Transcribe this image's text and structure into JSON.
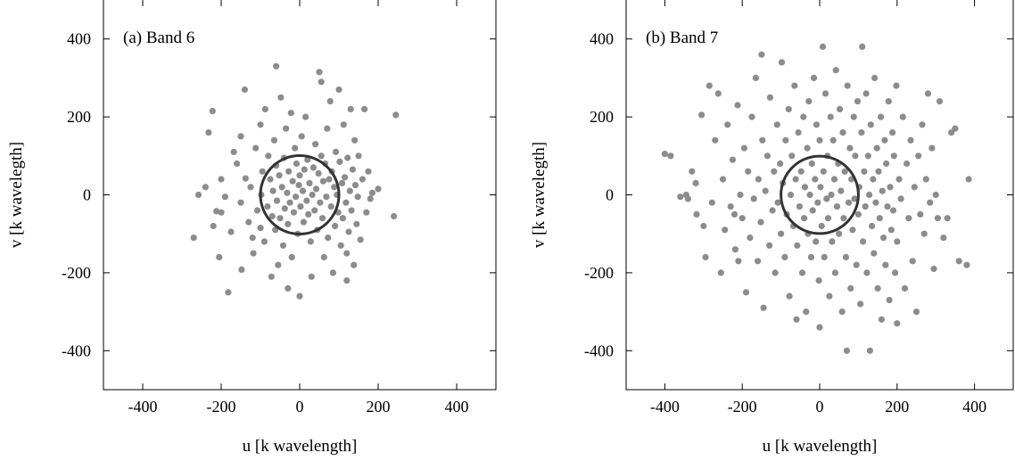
{
  "chart_data": [
    {
      "type": "scatter",
      "panel_label": "(a) Band 6",
      "xlabel": "u [k wavelength]",
      "ylabel": "v [k wavelegth]",
      "xlim": [
        -500,
        500
      ],
      "ylim": [
        -500,
        500
      ],
      "xticks": [
        -400,
        -200,
        0,
        200,
        400
      ],
      "yticks": [
        -400,
        -200,
        0,
        200,
        400
      ],
      "grid": false,
      "point_color": "#8c8c8c",
      "circle": {
        "cx": 0,
        "cy": 0,
        "r": 100,
        "color": "#333333"
      },
      "points": [
        [
          -270,
          -110
        ],
        [
          -258,
          0
        ],
        [
          -240,
          20
        ],
        [
          -232,
          160
        ],
        [
          -222,
          215
        ],
        [
          -212,
          -42
        ],
        [
          -205,
          -160
        ],
        [
          -200,
          -45
        ],
        [
          -190,
          -5
        ],
        [
          -182,
          -250
        ],
        [
          -175,
          -95
        ],
        [
          -168,
          110
        ],
        [
          -160,
          80
        ],
        [
          -150,
          -20
        ],
        [
          -148,
          -192
        ],
        [
          -140,
          270
        ],
        [
          -138,
          42
        ],
        [
          -130,
          -70
        ],
        [
          -125,
          20
        ],
        [
          -118,
          -150
        ],
        [
          -112,
          120
        ],
        [
          -108,
          -40
        ],
        [
          -100,
          -85
        ],
        [
          -100,
          180
        ],
        [
          -98,
          0
        ],
        [
          -95,
          60
        ],
        [
          -90,
          -120
        ],
        [
          -88,
          220
        ],
        [
          -82,
          -30
        ],
        [
          -80,
          100
        ],
        [
          -75,
          40
        ],
        [
          -72,
          -210
        ],
        [
          -70,
          -55
        ],
        [
          -68,
          10
        ],
        [
          -65,
          140
        ],
        [
          -62,
          -90
        ],
        [
          -60,
          75
        ],
        [
          -58,
          -15
        ],
        [
          -55,
          -180
        ],
        [
          -52,
          50
        ],
        [
          -50,
          -60
        ],
        [
          -48,
          250
        ],
        [
          -45,
          20
        ],
        [
          -42,
          -130
        ],
        [
          -40,
          95
        ],
        [
          -38,
          -35
        ],
        [
          -35,
          170
        ],
        [
          -32,
          5
        ],
        [
          -30,
          -75
        ],
        [
          -28,
          60
        ],
        [
          -25,
          -20
        ],
        [
          -22,
          210
        ],
        [
          -20,
          -160
        ],
        [
          -18,
          35
        ],
        [
          -15,
          -45
        ],
        [
          -12,
          120
        ],
        [
          -10,
          -5
        ],
        [
          -8,
          80
        ],
        [
          -5,
          -100
        ],
        [
          -2,
          25
        ],
        [
          0,
          -260
        ],
        [
          0,
          50
        ],
        [
          2,
          -30
        ],
        [
          5,
          150
        ],
        [
          8,
          10
        ],
        [
          10,
          -70
        ],
        [
          12,
          65
        ],
        [
          15,
          200
        ],
        [
          18,
          -15
        ],
        [
          20,
          90
        ],
        [
          22,
          -50
        ],
        [
          25,
          30
        ],
        [
          28,
          -120
        ],
        [
          30,
          -210
        ],
        [
          32,
          0
        ],
        [
          35,
          70
        ],
        [
          38,
          -40
        ],
        [
          40,
          130
        ],
        [
          42,
          15
        ],
        [
          45,
          -90
        ],
        [
          48,
          55
        ],
        [
          50,
          315
        ],
        [
          52,
          -20
        ],
        [
          55,
          100
        ],
        [
          58,
          -60
        ],
        [
          60,
          35
        ],
        [
          62,
          -160
        ],
        [
          65,
          80
        ],
        [
          68,
          -5
        ],
        [
          70,
          170
        ],
        [
          72,
          -110
        ],
        [
          75,
          40
        ],
        [
          78,
          240
        ],
        [
          80,
          -30
        ],
        [
          82,
          60
        ],
        [
          85,
          -200
        ],
        [
          88,
          20
        ],
        [
          90,
          -80
        ],
        [
          92,
          110
        ],
        [
          95,
          0
        ],
        [
          98,
          -45
        ],
        [
          100,
          270
        ],
        [
          102,
          85
        ],
        [
          105,
          -130
        ],
        [
          108,
          30
        ],
        [
          110,
          -60
        ],
        [
          112,
          180
        ],
        [
          115,
          45
        ],
        [
          118,
          -20
        ],
        [
          120,
          -150
        ],
        [
          122,
          95
        ],
        [
          125,
          -95
        ],
        [
          128,
          10
        ],
        [
          130,
          220
        ],
        [
          132,
          -40
        ],
        [
          135,
          65
        ],
        [
          138,
          -180
        ],
        [
          140,
          140
        ],
        [
          142,
          25
        ],
        [
          145,
          -75
        ],
        [
          148,
          -5
        ],
        [
          150,
          100
        ],
        [
          155,
          -115
        ],
        [
          160,
          40
        ],
        [
          165,
          220
        ],
        [
          170,
          -45
        ],
        [
          175,
          60
        ],
        [
          180,
          -10
        ],
        [
          185,
          5
        ],
        [
          200,
          15
        ],
        [
          245,
          205
        ],
        [
          240,
          -55
        ],
        [
          -60,
          330
        ],
        [
          55,
          290
        ],
        [
          -120,
          -110
        ],
        [
          -150,
          150
        ],
        [
          -200,
          40
        ],
        [
          -30,
          -240
        ],
        [
          120,
          -220
        ],
        [
          -220,
          -80
        ]
      ]
    },
    {
      "type": "scatter",
      "panel_label": "(b) Band 7",
      "xlabel": "u [k wavelength]",
      "ylabel": "v [k wavelegth]",
      "xlim": [
        -500,
        500
      ],
      "ylim": [
        -500,
        500
      ],
      "xticks": [
        -400,
        -200,
        0,
        200,
        400
      ],
      "yticks": [
        -400,
        -200,
        0,
        200,
        400
      ],
      "grid": false,
      "point_color": "#8c8c8c",
      "circle": {
        "cx": 0,
        "cy": 0,
        "r": 100,
        "color": "#333333"
      },
      "points": [
        [
          -400,
          105
        ],
        [
          -385,
          100
        ],
        [
          -360,
          -5
        ],
        [
          -345,
          0
        ],
        [
          -330,
          60
        ],
        [
          -318,
          -50
        ],
        [
          -305,
          205
        ],
        [
          -295,
          -160
        ],
        [
          -285,
          280
        ],
        [
          -278,
          -20
        ],
        [
          -270,
          140
        ],
        [
          -262,
          260
        ],
        [
          -255,
          -200
        ],
        [
          -250,
          40
        ],
        [
          -245,
          -90
        ],
        [
          -238,
          180
        ],
        [
          -230,
          -30
        ],
        [
          -225,
          90
        ],
        [
          -218,
          -140
        ],
        [
          -212,
          230
        ],
        [
          -205,
          0
        ],
        [
          -200,
          -60
        ],
        [
          -195,
          120
        ],
        [
          -190,
          -250
        ],
        [
          -185,
          60
        ],
        [
          -180,
          -110
        ],
        [
          -175,
          200
        ],
        [
          -170,
          -10
        ],
        [
          -165,
          300
        ],
        [
          -160,
          -170
        ],
        [
          -158,
          40
        ],
        [
          -152,
          -70
        ],
        [
          -148,
          140
        ],
        [
          -145,
          -290
        ],
        [
          -140,
          10
        ],
        [
          -135,
          100
        ],
        [
          -130,
          -130
        ],
        [
          -128,
          250
        ],
        [
          -122,
          -40
        ],
        [
          -118,
          60
        ],
        [
          -115,
          -200
        ],
        [
          -110,
          180
        ],
        [
          -108,
          -20
        ],
        [
          -102,
          80
        ],
        [
          -100,
          -100
        ],
        [
          -98,
          340
        ],
        [
          -95,
          30
        ],
        [
          -90,
          -160
        ],
        [
          -88,
          140
        ],
        [
          -85,
          -50
        ],
        [
          -80,
          220
        ],
        [
          -78,
          -260
        ],
        [
          -75,
          0
        ],
        [
          -72,
          100
        ],
        [
          -68,
          -80
        ],
        [
          -65,
          280
        ],
        [
          -62,
          40
        ],
        [
          -58,
          -130
        ],
        [
          -55,
          160
        ],
        [
          -52,
          -30
        ],
        [
          -48,
          60
        ],
        [
          -45,
          -200
        ],
        [
          -42,
          200
        ],
        [
          -40,
          -60
        ],
        [
          -38,
          20
        ],
        [
          -35,
          -300
        ],
        [
          -32,
          120
        ],
        [
          -30,
          -100
        ],
        [
          -28,
          240
        ],
        [
          -25,
          0
        ],
        [
          -22,
          -160
        ],
        [
          -20,
          80
        ],
        [
          -18,
          -40
        ],
        [
          -15,
          300
        ],
        [
          -12,
          40
        ],
        [
          -10,
          -120
        ],
        [
          -8,
          180
        ],
        [
          -5,
          -20
        ],
        [
          -2,
          -220
        ],
        [
          0,
          -340
        ],
        [
          0,
          140
        ],
        [
          2,
          20
        ],
        [
          5,
          -80
        ],
        [
          8,
          380
        ],
        [
          10,
          60
        ],
        [
          12,
          -160
        ],
        [
          15,
          260
        ],
        [
          18,
          -10
        ],
        [
          20,
          100
        ],
        [
          22,
          -60
        ],
        [
          25,
          -260
        ],
        [
          28,
          200
        ],
        [
          30,
          0
        ],
        [
          32,
          -120
        ],
        [
          35,
          140
        ],
        [
          38,
          40
        ],
        [
          40,
          -200
        ],
        [
          42,
          320
        ],
        [
          45,
          -30
        ],
        [
          48,
          80
        ],
        [
          50,
          -100
        ],
        [
          52,
          220
        ],
        [
          55,
          10
        ],
        [
          58,
          -300
        ],
        [
          60,
          160
        ],
        [
          62,
          -60
        ],
        [
          65,
          60
        ],
        [
          68,
          -160
        ],
        [
          70,
          -400
        ],
        [
          72,
          280
        ],
        [
          75,
          -20
        ],
        [
          78,
          120
        ],
        [
          80,
          -240
        ],
        [
          82,
          40
        ],
        [
          85,
          -90
        ],
        [
          88,
          200
        ],
        [
          90,
          -10
        ],
        [
          92,
          100
        ],
        [
          95,
          -180
        ],
        [
          98,
          240
        ],
        [
          100,
          -50
        ],
        [
          102,
          20
        ],
        [
          105,
          -280
        ],
        [
          108,
          160
        ],
        [
          110,
          380
        ],
        [
          112,
          -120
        ],
        [
          115,
          60
        ],
        [
          118,
          -30
        ],
        [
          120,
          260
        ],
        [
          122,
          -200
        ],
        [
          125,
          100
        ],
        [
          128,
          0
        ],
        [
          130,
          -400
        ],
        [
          132,
          180
        ],
        [
          135,
          -80
        ],
        [
          138,
          40
        ],
        [
          140,
          -150
        ],
        [
          142,
          300
        ],
        [
          145,
          -20
        ],
        [
          148,
          120
        ],
        [
          150,
          -240
        ],
        [
          152,
          60
        ],
        [
          155,
          -60
        ],
        [
          158,
          200
        ],
        [
          160,
          -320
        ],
        [
          162,
          10
        ],
        [
          165,
          -110
        ],
        [
          168,
          140
        ],
        [
          170,
          -180
        ],
        [
          172,
          80
        ],
        [
          175,
          -30
        ],
        [
          178,
          240
        ],
        [
          180,
          -270
        ],
        [
          182,
          20
        ],
        [
          185,
          -90
        ],
        [
          188,
          160
        ],
        [
          190,
          -40
        ],
        [
          192,
          100
        ],
        [
          195,
          -200
        ],
        [
          198,
          280
        ],
        [
          200,
          -120
        ],
        [
          205,
          40
        ],
        [
          210,
          -10
        ],
        [
          215,
          200
        ],
        [
          220,
          -240
        ],
        [
          225,
          80
        ],
        [
          230,
          -60
        ],
        [
          235,
          140
        ],
        [
          240,
          -170
        ],
        [
          245,
          20
        ],
        [
          250,
          -300
        ],
        [
          255,
          100
        ],
        [
          260,
          -50
        ],
        [
          265,
          180
        ],
        [
          270,
          -100
        ],
        [
          275,
          40
        ],
        [
          280,
          260
        ],
        [
          285,
          -20
        ],
        [
          290,
          120
        ],
        [
          295,
          -190
        ],
        [
          300,
          0
        ],
        [
          305,
          -60
        ],
        [
          310,
          240
        ],
        [
          320,
          -110
        ],
        [
          330,
          -60
        ],
        [
          340,
          160
        ],
        [
          350,
          170
        ],
        [
          360,
          -170
        ],
        [
          380,
          -180
        ],
        [
          385,
          40
        ],
        [
          -300,
          -80
        ],
        [
          -320,
          30
        ],
        [
          -150,
          360
        ],
        [
          -60,
          -320
        ],
        [
          200,
          -330
        ],
        [
          -220,
          -50
        ],
        [
          -340,
          -10
        ],
        [
          -210,
          -170
        ]
      ]
    }
  ]
}
